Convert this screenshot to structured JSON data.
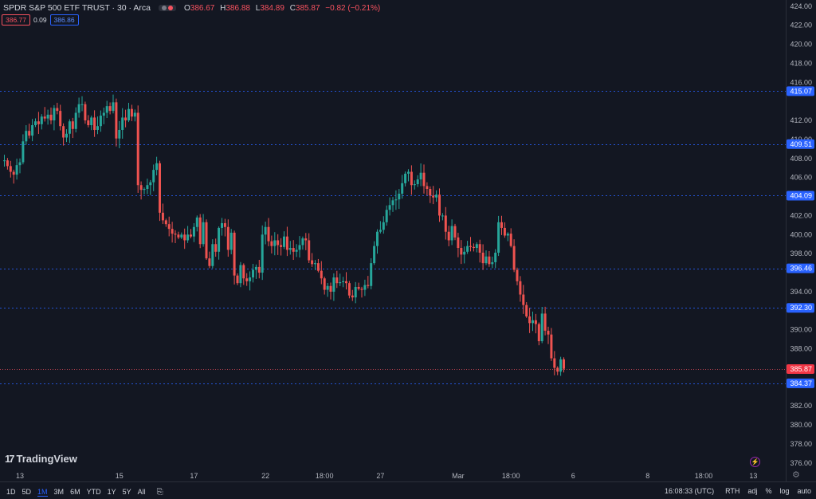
{
  "header": {
    "symbol": "SPDR S&P 500 ETF TRUST · 30 · Arca",
    "ohlc": [
      {
        "k": "O",
        "v": "386.67"
      },
      {
        "k": "H",
        "v": "386.88"
      },
      {
        "k": "L",
        "v": "384.89"
      },
      {
        "k": "C",
        "v": "385.87"
      }
    ],
    "change": "−0.82 (−0.21%)",
    "sell_price": "386.77",
    "spread": "0.09",
    "buy_price": "386.86"
  },
  "colors": {
    "background": "#131722",
    "up": "#26a69a",
    "down": "#ef5350",
    "accent": "#2962ff",
    "axis_text": "#b2b5be"
  },
  "logo_text": "TradingView",
  "bottom_bar": {
    "ranges": [
      "1D",
      "5D",
      "1M",
      "3M",
      "6M",
      "YTD",
      "1Y",
      "5Y",
      "All"
    ],
    "active_range": "1M",
    "time": "16:08:33 (UTC)",
    "session": "RTH",
    "options": [
      "adj",
      "%",
      "log",
      "auto"
    ]
  },
  "chart_data": {
    "type": "candlestick",
    "y_axis": {
      "min": 375.4,
      "max": 424.4,
      "ticks": [
        "424.00",
        "422.00",
        "420.00",
        "418.00",
        "416.00",
        "412.00",
        "410.00",
        "408.00",
        "406.00",
        "402.00",
        "400.00",
        "398.00",
        "394.00",
        "390.00",
        "388.00",
        "386.00",
        "382.00",
        "380.00",
        "378.00",
        "376.00"
      ]
    },
    "x_axis": {
      "labels": [
        "13",
        "15",
        "17",
        "22",
        "18:00",
        "27",
        "Mar",
        "18:00",
        "6",
        "8",
        "18:00",
        "13"
      ],
      "label_bar_index": [
        5,
        37,
        61,
        84,
        103,
        121,
        146,
        163,
        183,
        207,
        225,
        241
      ]
    },
    "current_price": {
      "value": 385.87,
      "label": "385.87"
    },
    "alert_lines": [
      {
        "value": 415.07,
        "label": "415.07"
      },
      {
        "value": 409.51,
        "label": "409.51"
      },
      {
        "value": 404.09,
        "label": "404.09"
      },
      {
        "value": 396.46,
        "label": "396.46"
      },
      {
        "value": 392.3,
        "label": "392.30"
      },
      {
        "value": 384.37,
        "label": "384.37"
      }
    ],
    "close_path": [
      407.8,
      407.2,
      406.6,
      406.3,
      407.3,
      407.6,
      409.8,
      410.9,
      410.4,
      411.5,
      411.9,
      411.6,
      412.4,
      412.2,
      412.6,
      412.0,
      413.3,
      413.0,
      411.4,
      410.2,
      410.6,
      411.9,
      411.1,
      412.8,
      413.7,
      413.7,
      412.0,
      411.5,
      412.3,
      411.0,
      411.4,
      412.5,
      412.8,
      413.5,
      413.0,
      413.9,
      410.1,
      411.0,
      412.3,
      412.0,
      413.2,
      412.4,
      412.8,
      405.2,
      404.7,
      404.8,
      405.2,
      405.5,
      406.8,
      407.5,
      402.3,
      401.5,
      401.1,
      400.6,
      400.1,
      400.0,
      399.7,
      400.0,
      399.4,
      400.0,
      399.8,
      400.8,
      401.8,
      399.0,
      401.3,
      397.5,
      396.7,
      399.0,
      398.2,
      400.7,
      401.2,
      400.8,
      398.4,
      400.2,
      395.7,
      394.9,
      396.8,
      395.4,
      395.1,
      395.5,
      396.3,
      396.6,
      396.0,
      400.0,
      400.8,
      399.3,
      398.8,
      399.4,
      398.9,
      398.7,
      399.8,
      398.4,
      398.6,
      398.2,
      398.4,
      398.9,
      399.6,
      399.4,
      397.3,
      396.9,
      397.0,
      396.2,
      395.4,
      394.2,
      394.6,
      394.0,
      395.5,
      394.9,
      395.0,
      395.1,
      394.9,
      393.6,
      393.4,
      394.5,
      394.3,
      394.2,
      394.7,
      394.6,
      397.0,
      398.8,
      400.3,
      400.5,
      401.3,
      402.6,
      403.1,
      403.6,
      403.7,
      404.3,
      405.4,
      406.4,
      406.6,
      405.2,
      405.3,
      405.8,
      406.5,
      405.1,
      404.8,
      404.1,
      403.9,
      404.2,
      402.0,
      402.0,
      400.3,
      399.4,
      400.9,
      399.7,
      398.6,
      397.9,
      398.2,
      398.8,
      398.7,
      398.6,
      399.0,
      398.1,
      397.0,
      397.7,
      396.9,
      397.1,
      398.1,
      401.3,
      400.7,
      399.9,
      400.1,
      398.8,
      396.3,
      395.1,
      393.7,
      392.6,
      391.4,
      390.7,
      391.0,
      390.6,
      388.8,
      391.7,
      389.9,
      389.5,
      387.0,
      386.0,
      385.6,
      386.9,
      385.9
    ],
    "open": 407.8,
    "bars": 181
  }
}
